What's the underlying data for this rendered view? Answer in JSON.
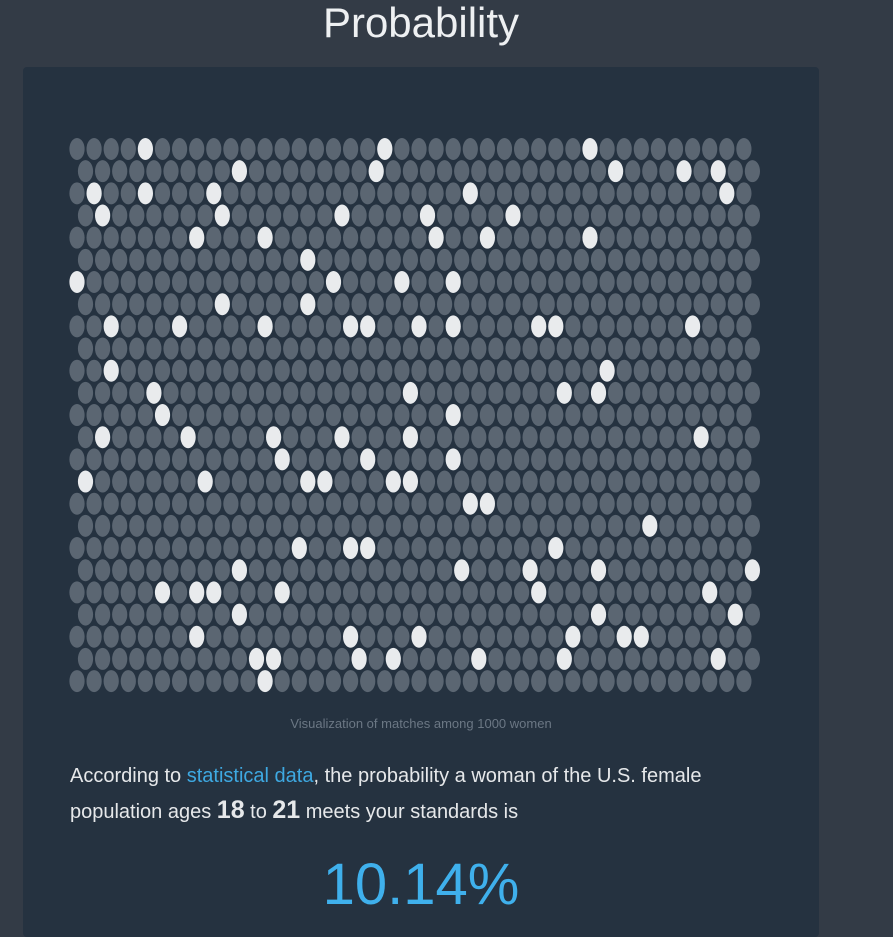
{
  "header": {
    "title": "Probability"
  },
  "visualization": {
    "caption": "Visualization of matches among 1000 women",
    "matches": [
      [
        4,
        18,
        30
      ],
      [
        9,
        17,
        31,
        35,
        37
      ],
      [
        1,
        4,
        8,
        23,
        38
      ],
      [
        1,
        8,
        15,
        20,
        25
      ],
      [
        7,
        11,
        21,
        24,
        30
      ],
      [
        13
      ],
      [
        0,
        15,
        19,
        22
      ],
      [
        8,
        13
      ],
      [
        2,
        6,
        11,
        16,
        17,
        20,
        22,
        27,
        28,
        36
      ],
      [],
      [
        2,
        31
      ],
      [
        4,
        19,
        28,
        30
      ],
      [
        5,
        22
      ],
      [
        1,
        6,
        11,
        15,
        19,
        36
      ],
      [
        12,
        17,
        22
      ],
      [
        0,
        7,
        13,
        14,
        18,
        19
      ],
      [
        23,
        24
      ],
      [
        33
      ],
      [
        13,
        16,
        17,
        28
      ],
      [
        9,
        22,
        26,
        30,
        39
      ],
      [
        5,
        7,
        8,
        12,
        27,
        37
      ],
      [
        9,
        30,
        38
      ],
      [
        7,
        16,
        20,
        29,
        32,
        33
      ],
      [
        10,
        11,
        16,
        18,
        23,
        28,
        37
      ],
      [
        11
      ]
    ]
  },
  "statement": {
    "prefix": "According to ",
    "link": "statistical data",
    "middle": ", the probability a woman of the U.S. female population ages ",
    "age_min": "18",
    "to": " to ",
    "age_max": "21",
    "suffix": " meets your standards is"
  },
  "result": "10.14%"
}
